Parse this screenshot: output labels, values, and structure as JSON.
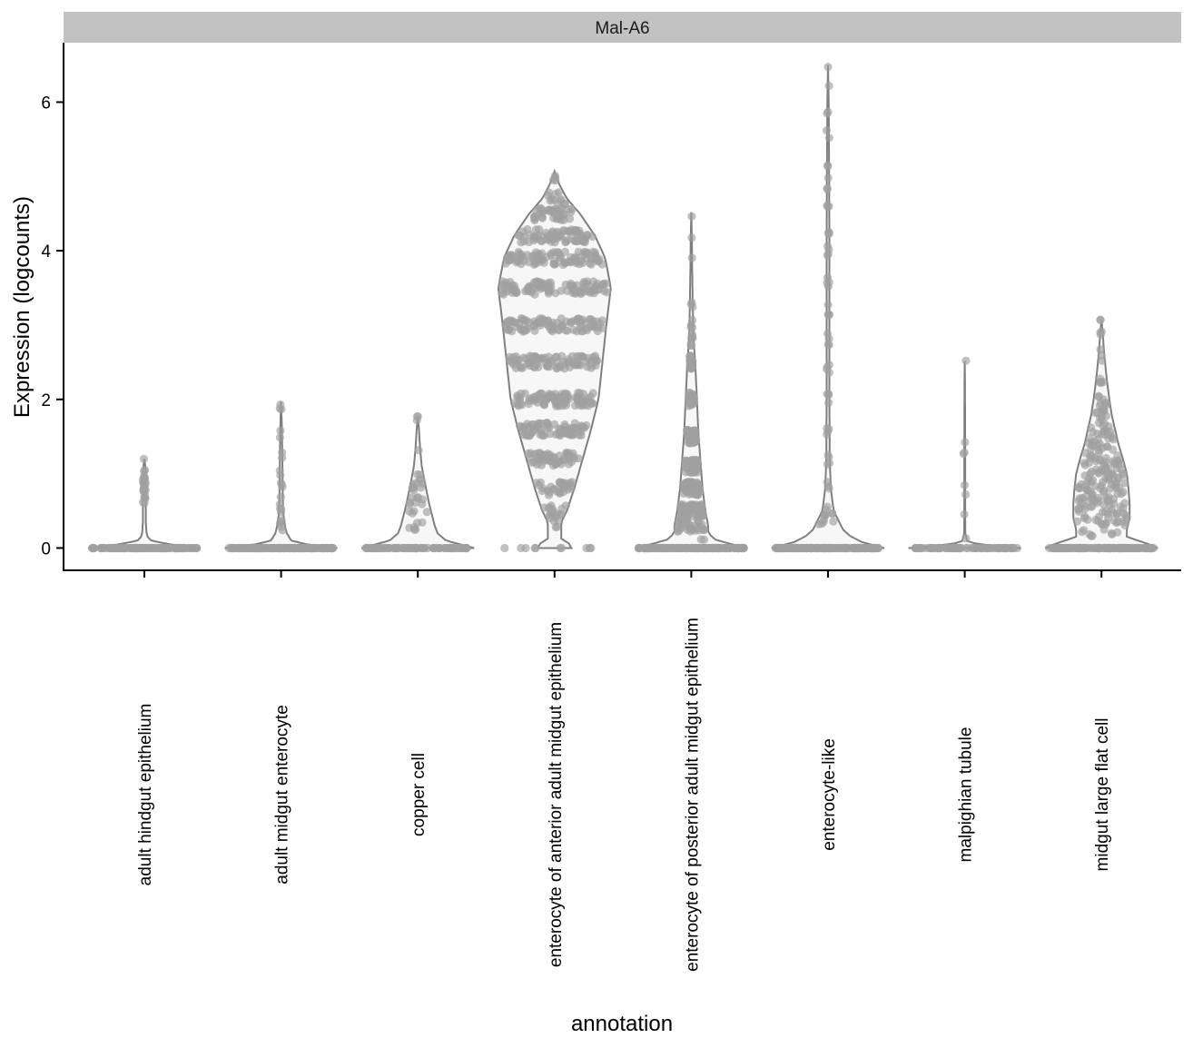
{
  "chart_data": {
    "type": "violin",
    "facet_title": "Mal-A6",
    "xlabel": "annotation",
    "ylabel": "Expression (logcounts)",
    "ylim": [
      -0.3,
      6.8
    ],
    "yticks": [
      0,
      2,
      4,
      6
    ],
    "grid": false,
    "legend": "none",
    "colors": {
      "violin_fill": "#f7f7f7",
      "violin_stroke": "#7f7f7f",
      "point": "#a0a0a0",
      "strip_bg": "#c2c2c2",
      "axis": "#000000"
    },
    "categories": [
      "adult hindgut epithelium",
      "adult midgut enterocyte",
      "copper cell",
      "enterocyte of anterior adult midgut epithelium",
      "enterocyte of posterior adult midgut epithelium",
      "enterocyte-like",
      "malpighian tubule",
      "midgut large flat cell"
    ],
    "violins": [
      {
        "max": 1.2,
        "density": [
          [
            0,
            1
          ],
          [
            0.05,
            0.45
          ],
          [
            0.1,
            0.12
          ],
          [
            0.15,
            0.06
          ],
          [
            0.2,
            0.04
          ],
          [
            0.35,
            0.025
          ],
          [
            0.6,
            0.025
          ],
          [
            0.9,
            0.03
          ],
          [
            1.05,
            0.025
          ],
          [
            1.2,
            0.0
          ]
        ],
        "points": [
          [
            0,
            120
          ],
          [
            0.65,
            5
          ],
          [
            0.75,
            5
          ],
          [
            0.85,
            6
          ],
          [
            0.95,
            6
          ],
          [
            1.0,
            3
          ],
          [
            1.2,
            1
          ]
        ]
      },
      {
        "max": 1.97,
        "density": [
          [
            0,
            1
          ],
          [
            0.05,
            0.45
          ],
          [
            0.1,
            0.18
          ],
          [
            0.2,
            0.1
          ],
          [
            0.3,
            0.07
          ],
          [
            0.45,
            0.04
          ],
          [
            0.7,
            0.03
          ],
          [
            1.0,
            0.025
          ],
          [
            1.3,
            0.02
          ],
          [
            1.6,
            0.015
          ],
          [
            1.97,
            0.0
          ]
        ],
        "points": [
          [
            0,
            150
          ],
          [
            0.2,
            2
          ],
          [
            0.3,
            2
          ],
          [
            0.45,
            3
          ],
          [
            0.6,
            3
          ],
          [
            0.8,
            3
          ],
          [
            1.0,
            2
          ],
          [
            1.3,
            2
          ],
          [
            1.55,
            2
          ],
          [
            1.85,
            2
          ],
          [
            1.97,
            1
          ]
        ]
      },
      {
        "max": 1.77,
        "density": [
          [
            0,
            1
          ],
          [
            0.1,
            0.5
          ],
          [
            0.2,
            0.35
          ],
          [
            0.3,
            0.3
          ],
          [
            0.45,
            0.25
          ],
          [
            0.6,
            0.2
          ],
          [
            0.75,
            0.16
          ],
          [
            0.9,
            0.12
          ],
          [
            1.1,
            0.07
          ],
          [
            1.35,
            0.04
          ],
          [
            1.6,
            0.02
          ],
          [
            1.77,
            0.0
          ]
        ],
        "points": [
          [
            0,
            90
          ],
          [
            0.2,
            2
          ],
          [
            0.3,
            4
          ],
          [
            0.45,
            4
          ],
          [
            0.6,
            5
          ],
          [
            0.7,
            4
          ],
          [
            0.8,
            4
          ],
          [
            0.9,
            4
          ],
          [
            1.0,
            3
          ],
          [
            1.35,
            1
          ],
          [
            1.7,
            2
          ],
          [
            1.77,
            1
          ]
        ]
      },
      {
        "max": 5.07,
        "density": [
          [
            0,
            0.3
          ],
          [
            0.05,
            0.3
          ],
          [
            0.1,
            0.12
          ],
          [
            0.35,
            0.12
          ],
          [
            0.5,
            0.22
          ],
          [
            0.8,
            0.35
          ],
          [
            1.2,
            0.5
          ],
          [
            1.6,
            0.65
          ],
          [
            2.0,
            0.78
          ],
          [
            2.5,
            0.85
          ],
          [
            3.0,
            0.92
          ],
          [
            3.5,
            1.0
          ],
          [
            3.9,
            0.9
          ],
          [
            4.2,
            0.72
          ],
          [
            4.5,
            0.45
          ],
          [
            4.7,
            0.22
          ],
          [
            4.9,
            0.08
          ],
          [
            5.07,
            0.0
          ]
        ],
        "points": [
          [
            0,
            10
          ],
          [
            0.35,
            6
          ],
          [
            0.5,
            14
          ],
          [
            0.8,
            30
          ],
          [
            1.2,
            50
          ],
          [
            1.6,
            70
          ],
          [
            2.0,
            90
          ],
          [
            2.5,
            90
          ],
          [
            3.0,
            95
          ],
          [
            3.5,
            100
          ],
          [
            3.9,
            90
          ],
          [
            4.2,
            70
          ],
          [
            4.5,
            40
          ],
          [
            4.7,
            12
          ],
          [
            4.9,
            3
          ],
          [
            5.07,
            1
          ]
        ]
      },
      {
        "max": 4.52,
        "density": [
          [
            0,
            1
          ],
          [
            0.1,
            0.45
          ],
          [
            0.2,
            0.3
          ],
          [
            0.3,
            0.3
          ],
          [
            0.5,
            0.25
          ],
          [
            0.8,
            0.2
          ],
          [
            1.1,
            0.17
          ],
          [
            1.5,
            0.13
          ],
          [
            2.0,
            0.1
          ],
          [
            2.5,
            0.07
          ],
          [
            2.8,
            0.04
          ],
          [
            3.3,
            0.025
          ],
          [
            3.8,
            0.015
          ],
          [
            4.2,
            0.01
          ],
          [
            4.52,
            0.0
          ]
        ],
        "points": [
          [
            0,
            140
          ],
          [
            0.2,
            8
          ],
          [
            0.3,
            30
          ],
          [
            0.5,
            60
          ],
          [
            0.8,
            70
          ],
          [
            1.1,
            60
          ],
          [
            1.5,
            50
          ],
          [
            2.0,
            40
          ],
          [
            2.5,
            25
          ],
          [
            2.8,
            8
          ],
          [
            3.0,
            4
          ],
          [
            3.3,
            3
          ],
          [
            3.9,
            1
          ],
          [
            4.25,
            1
          ],
          [
            4.52,
            1
          ]
        ]
      },
      {
        "max": 6.5,
        "density": [
          [
            0,
            1
          ],
          [
            0.08,
            0.6
          ],
          [
            0.2,
            0.3
          ],
          [
            0.35,
            0.2
          ],
          [
            0.5,
            0.1
          ],
          [
            0.8,
            0.05
          ],
          [
            1.2,
            0.03
          ],
          [
            2.0,
            0.025
          ],
          [
            3.0,
            0.025
          ],
          [
            4.0,
            0.025
          ],
          [
            5.0,
            0.02
          ],
          [
            6.0,
            0.012
          ],
          [
            6.5,
            0.0
          ]
        ],
        "points": [
          [
            0,
            150
          ],
          [
            0.4,
            8
          ],
          [
            0.5,
            4
          ],
          [
            0.8,
            3
          ],
          [
            1.2,
            4
          ],
          [
            1.6,
            4
          ],
          [
            2.0,
            4
          ],
          [
            2.4,
            4
          ],
          [
            2.8,
            4
          ],
          [
            3.2,
            4
          ],
          [
            3.6,
            4
          ],
          [
            4.0,
            4
          ],
          [
            4.3,
            3
          ],
          [
            4.6,
            3
          ],
          [
            4.9,
            3
          ],
          [
            5.2,
            2
          ],
          [
            5.6,
            2
          ],
          [
            5.9,
            2
          ],
          [
            6.2,
            1
          ],
          [
            6.5,
            1
          ]
        ]
      },
      {
        "max": 2.52,
        "density": [
          [
            0,
            1
          ],
          [
            0.04,
            0.35
          ],
          [
            0.08,
            0.05
          ],
          [
            0.2,
            0.01
          ],
          [
            0.5,
            0.008
          ],
          [
            0.9,
            0.008
          ],
          [
            1.3,
            0.008
          ],
          [
            1.8,
            0.006
          ],
          [
            2.2,
            0.005
          ],
          [
            2.52,
            0.0
          ]
        ],
        "points": [
          [
            0,
            80
          ],
          [
            0.2,
            1
          ],
          [
            0.45,
            1
          ],
          [
            0.75,
            1
          ],
          [
            0.9,
            1
          ],
          [
            1.3,
            2
          ],
          [
            1.5,
            1
          ],
          [
            2.5,
            1
          ]
        ]
      },
      {
        "max": 3.07,
        "density": [
          [
            0,
            1
          ],
          [
            0.05,
            0.85
          ],
          [
            0.15,
            0.45
          ],
          [
            0.25,
            0.45
          ],
          [
            0.4,
            0.5
          ],
          [
            0.6,
            0.5
          ],
          [
            0.8,
            0.48
          ],
          [
            1.0,
            0.45
          ],
          [
            1.2,
            0.38
          ],
          [
            1.4,
            0.3
          ],
          [
            1.6,
            0.24
          ],
          [
            1.8,
            0.18
          ],
          [
            2.0,
            0.14
          ],
          [
            2.3,
            0.09
          ],
          [
            2.6,
            0.05
          ],
          [
            2.9,
            0.02
          ],
          [
            3.07,
            0.0
          ]
        ],
        "points": [
          [
            0,
            130
          ],
          [
            0.25,
            12
          ],
          [
            0.4,
            25
          ],
          [
            0.6,
            30
          ],
          [
            0.8,
            30
          ],
          [
            1.0,
            28
          ],
          [
            1.2,
            24
          ],
          [
            1.4,
            18
          ],
          [
            1.6,
            14
          ],
          [
            1.8,
            10
          ],
          [
            2.0,
            8
          ],
          [
            2.3,
            5
          ],
          [
            2.6,
            3
          ],
          [
            2.9,
            3
          ],
          [
            3.07,
            2
          ]
        ]
      }
    ]
  }
}
